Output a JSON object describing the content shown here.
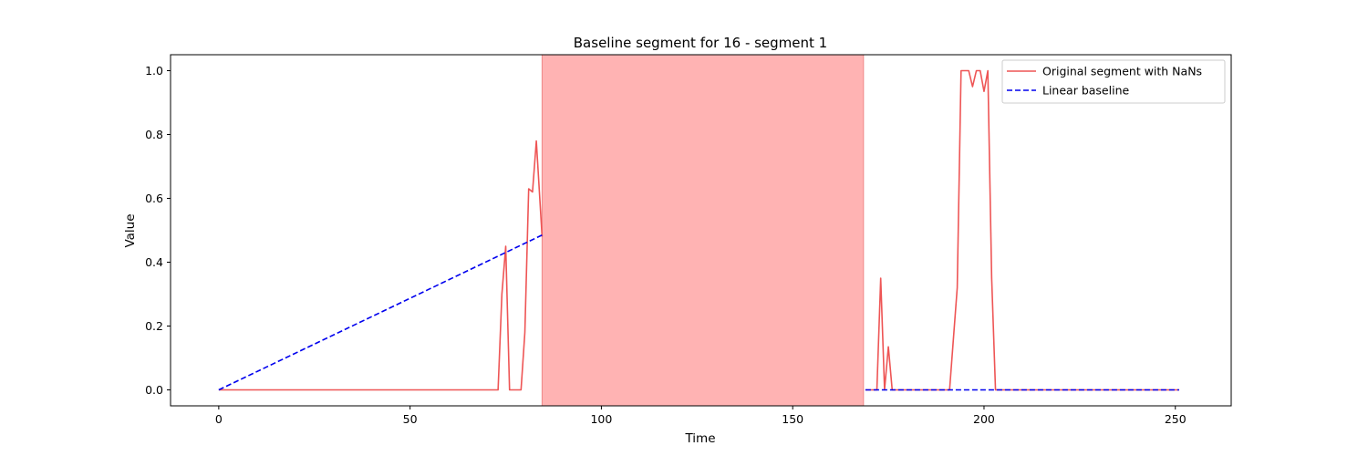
{
  "chart_data": {
    "type": "line",
    "title": "Baseline segment for 16 - segment 1",
    "xlabel": "Time",
    "ylabel": "Value",
    "xlim": [
      -12.6,
      264.6
    ],
    "ylim": [
      -0.05,
      1.05
    ],
    "x_ticks": [
      0,
      50,
      100,
      150,
      200,
      250
    ],
    "y_ticks": [
      0.0,
      0.2,
      0.4,
      0.6,
      0.8,
      1.0
    ],
    "x_tick_labels": [
      "0",
      "50",
      "100",
      "150",
      "200",
      "250"
    ],
    "y_tick_labels": [
      "0.0",
      "0.2",
      "0.4",
      "0.6",
      "0.8",
      "1.0"
    ],
    "grid": false,
    "legend_position": "upper right",
    "shaded_region": {
      "x_start": 84.5,
      "x_end": 168.5,
      "color": "#ff9a9a"
    },
    "series": [
      {
        "name": "Original segment with NaNs",
        "style": "solid",
        "color": "#ee5555",
        "segments": [
          [
            [
              0,
              0
            ],
            [
              73,
              0
            ],
            [
              74,
              0.3
            ],
            [
              75,
              0.45
            ],
            [
              76,
              0
            ],
            [
              79,
              0
            ],
            [
              80,
              0.18
            ],
            [
              81,
              0.63
            ],
            [
              82,
              0.62
            ],
            [
              83,
              0.78
            ],
            [
              84.5,
              0.48
            ]
          ],
          [
            [
              169,
              0
            ],
            [
              172,
              0
            ],
            [
              173,
              0.35
            ],
            [
              174,
              0
            ],
            [
              175,
              0.135
            ],
            [
              176,
              0
            ],
            [
              191,
              0
            ],
            [
              193,
              0.32
            ],
            [
              194,
              1.0
            ],
            [
              196,
              1.0
            ],
            [
              197,
              0.95
            ],
            [
              198,
              1.0
            ],
            [
              199,
              1.0
            ],
            [
              200,
              0.935
            ],
            [
              201,
              1.0
            ],
            [
              202,
              0.35
            ],
            [
              203,
              0
            ],
            [
              251,
              0
            ]
          ]
        ]
      },
      {
        "name": "Linear baseline",
        "style": "dashed",
        "color": "#0000ee",
        "segments": [
          [
            [
              0,
              0
            ],
            [
              84.5,
              0.485
            ]
          ],
          [
            [
              169,
              0
            ],
            [
              251,
              0
            ]
          ]
        ]
      }
    ]
  }
}
